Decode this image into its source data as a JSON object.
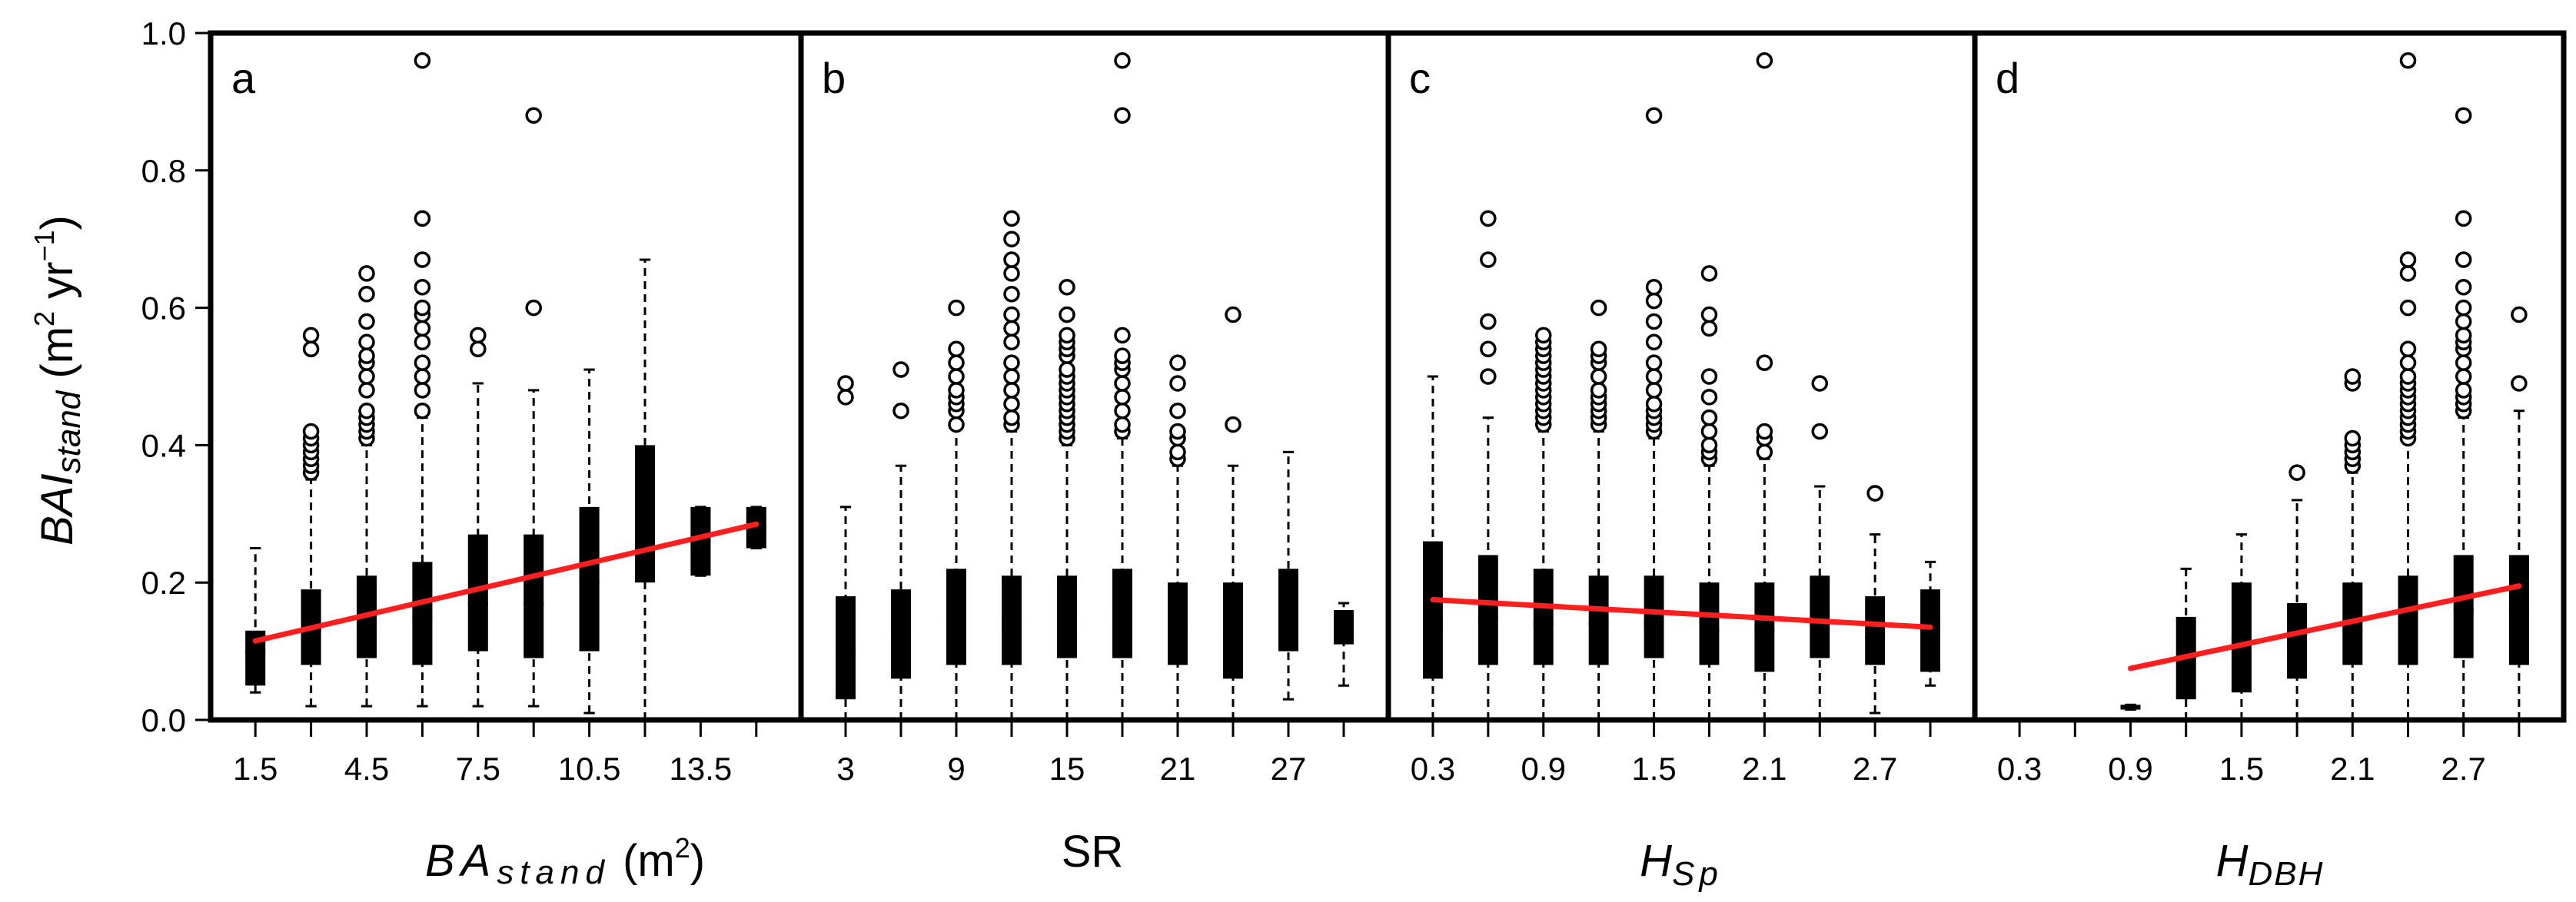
{
  "colors": {
    "box": "#000000",
    "trend": "#ff1f1f",
    "background": "#ffffff"
  },
  "y_axis": {
    "label_main": "BAI",
    "label_sub": "stand",
    "label_unit_open": " (m",
    "label_unit_sup1": "2",
    "label_unit_mid": " yr",
    "label_unit_sup2": "−1",
    "label_unit_close": ")",
    "ylim": [
      0,
      1
    ],
    "ticks": [
      {
        "value": 0.0,
        "label": "0.0"
      },
      {
        "value": 0.2,
        "label": "0.2"
      },
      {
        "value": 0.4,
        "label": "0.4"
      },
      {
        "value": 0.6,
        "label": "0.6"
      },
      {
        "value": 0.8,
        "label": "0.8"
      },
      {
        "value": 1.0,
        "label": "1.0"
      }
    ]
  },
  "chart_data": [
    {
      "type": "box",
      "panel": "a",
      "xlabel": {
        "main": "BA",
        "sub": "stand",
        "unit_open": " (m",
        "unit_sup": "2",
        "unit_close": ")"
      },
      "xlim": [
        0.75,
        15.75
      ],
      "x_tick_labels": [
        {
          "x": 1.5,
          "label": "1.5"
        },
        {
          "x": 4.5,
          "label": "4.5"
        },
        {
          "x": 7.5,
          "label": "7.5"
        },
        {
          "x": 10.5,
          "label": "10.5"
        },
        {
          "x": 13.5,
          "label": "13.5"
        }
      ],
      "boxes": [
        {
          "x": 1.5,
          "min": 0.04,
          "q1": 0.05,
          "median": 0.1,
          "q3": 0.13,
          "max": 0.25,
          "outliers": []
        },
        {
          "x": 3.0,
          "min": 0.02,
          "q1": 0.08,
          "median": 0.13,
          "q3": 0.19,
          "max": 0.35,
          "outliers": [
            0.36,
            0.37,
            0.38,
            0.39,
            0.4,
            0.41,
            0.42,
            0.54,
            0.56
          ]
        },
        {
          "x": 4.5,
          "min": 0.02,
          "q1": 0.09,
          "median": 0.14,
          "q3": 0.21,
          "max": 0.4,
          "outliers": [
            0.41,
            0.42,
            0.43,
            0.44,
            0.45,
            0.48,
            0.5,
            0.52,
            0.53,
            0.55,
            0.58,
            0.62,
            0.65
          ]
        },
        {
          "x": 6.0,
          "min": 0.02,
          "q1": 0.08,
          "median": 0.15,
          "q3": 0.23,
          "max": 0.44,
          "outliers": [
            0.45,
            0.48,
            0.5,
            0.52,
            0.55,
            0.57,
            0.59,
            0.6,
            0.63,
            0.67,
            0.73,
            0.96
          ]
        },
        {
          "x": 7.5,
          "min": 0.02,
          "q1": 0.1,
          "median": 0.17,
          "q3": 0.27,
          "max": 0.49,
          "outliers": [
            0.54,
            0.56
          ]
        },
        {
          "x": 9.0,
          "min": 0.02,
          "q1": 0.09,
          "median": 0.17,
          "q3": 0.27,
          "max": 0.48,
          "outliers": [
            0.6,
            0.88
          ]
        },
        {
          "x": 10.5,
          "min": 0.01,
          "q1": 0.1,
          "median": 0.2,
          "q3": 0.31,
          "max": 0.51,
          "outliers": []
        },
        {
          "x": 12.0,
          "min": 0.0,
          "q1": 0.2,
          "median": 0.28,
          "q3": 0.4,
          "max": 0.67,
          "outliers": []
        },
        {
          "x": 13.5,
          "min": 0.21,
          "q1": 0.21,
          "median": 0.26,
          "q3": 0.31,
          "max": 0.31,
          "outliers": []
        },
        {
          "x": 15.0,
          "min": 0.25,
          "q1": 0.25,
          "median": 0.28,
          "q3": 0.31,
          "max": 0.31,
          "outliers": []
        }
      ],
      "trend_line": {
        "x": [
          1.5,
          15.0
        ],
        "y": [
          0.115,
          0.285
        ]
      }
    },
    {
      "type": "box",
      "panel": "b",
      "xlabel": {
        "main": "SR"
      },
      "xlim": [
        1.5,
        31.5
      ],
      "x_tick_labels": [
        {
          "x": 3,
          "label": "3"
        },
        {
          "x": 9,
          "label": "9"
        },
        {
          "x": 15,
          "label": "15"
        },
        {
          "x": 21,
          "label": "21"
        },
        {
          "x": 27,
          "label": "27"
        }
      ],
      "boxes": [
        {
          "x": 3,
          "min": 0.0,
          "q1": 0.03,
          "median": 0.1,
          "q3": 0.18,
          "max": 0.31,
          "outliers": [
            0.47,
            0.49
          ]
        },
        {
          "x": 6,
          "min": 0.0,
          "q1": 0.06,
          "median": 0.12,
          "q3": 0.19,
          "max": 0.37,
          "outliers": [
            0.45,
            0.51
          ]
        },
        {
          "x": 9,
          "min": 0.0,
          "q1": 0.08,
          "median": 0.14,
          "q3": 0.22,
          "max": 0.43,
          "outliers": [
            0.43,
            0.45,
            0.46,
            0.47,
            0.48,
            0.5,
            0.52,
            0.54,
            0.6
          ]
        },
        {
          "x": 12,
          "min": 0.0,
          "q1": 0.08,
          "median": 0.14,
          "q3": 0.21,
          "max": 0.42,
          "outliers": [
            0.43,
            0.44,
            0.46,
            0.48,
            0.5,
            0.52,
            0.55,
            0.57,
            0.59,
            0.62,
            0.65,
            0.67,
            0.7,
            0.73
          ]
        },
        {
          "x": 15,
          "min": 0.0,
          "q1": 0.09,
          "median": 0.14,
          "q3": 0.21,
          "max": 0.4,
          "outliers": [
            0.41,
            0.42,
            0.43,
            0.44,
            0.45,
            0.46,
            0.47,
            0.48,
            0.49,
            0.5,
            0.51,
            0.53,
            0.54,
            0.55,
            0.56,
            0.59,
            0.63
          ]
        },
        {
          "x": 18,
          "min": 0.0,
          "q1": 0.09,
          "median": 0.15,
          "q3": 0.22,
          "max": 0.41,
          "outliers": [
            0.42,
            0.43,
            0.45,
            0.47,
            0.49,
            0.51,
            0.52,
            0.53,
            0.56,
            0.88,
            0.96
          ]
        },
        {
          "x": 21,
          "min": 0.0,
          "q1": 0.08,
          "median": 0.13,
          "q3": 0.2,
          "max": 0.37,
          "outliers": [
            0.38,
            0.39,
            0.41,
            0.42,
            0.45,
            0.49,
            0.52
          ]
        },
        {
          "x": 24,
          "min": 0.0,
          "q1": 0.06,
          "median": 0.12,
          "q3": 0.2,
          "max": 0.37,
          "outliers": [
            0.43,
            0.59
          ]
        },
        {
          "x": 27,
          "min": 0.03,
          "q1": 0.1,
          "median": 0.15,
          "q3": 0.22,
          "max": 0.39,
          "outliers": []
        },
        {
          "x": 30,
          "min": 0.05,
          "q1": 0.11,
          "median": 0.14,
          "q3": 0.16,
          "max": 0.17,
          "outliers": []
        }
      ],
      "trend_line": null
    },
    {
      "type": "box",
      "panel": "c",
      "xlabel": {
        "main": "H",
        "sub": "Sp"
      },
      "xlim": [
        0.15,
        3.15
      ],
      "x_tick_labels": [
        {
          "x": 0.3,
          "label": "0.3"
        },
        {
          "x": 0.9,
          "label": "0.9"
        },
        {
          "x": 1.5,
          "label": "1.5"
        },
        {
          "x": 2.1,
          "label": "2.1"
        },
        {
          "x": 2.7,
          "label": "2.7"
        }
      ],
      "boxes": [
        {
          "x": 0.3,
          "min": 0.0,
          "q1": 0.06,
          "median": 0.14,
          "q3": 0.26,
          "max": 0.5,
          "outliers": []
        },
        {
          "x": 0.6,
          "min": 0.0,
          "q1": 0.08,
          "median": 0.15,
          "q3": 0.24,
          "max": 0.44,
          "outliers": [
            0.5,
            0.54,
            0.58,
            0.67,
            0.73
          ]
        },
        {
          "x": 0.9,
          "min": 0.0,
          "q1": 0.08,
          "median": 0.14,
          "q3": 0.22,
          "max": 0.42,
          "outliers": [
            0.43,
            0.44,
            0.45,
            0.46,
            0.47,
            0.48,
            0.49,
            0.5,
            0.51,
            0.52,
            0.53,
            0.54,
            0.55,
            0.56
          ]
        },
        {
          "x": 1.2,
          "min": 0.0,
          "q1": 0.08,
          "median": 0.14,
          "q3": 0.21,
          "max": 0.42,
          "outliers": [
            0.43,
            0.44,
            0.45,
            0.46,
            0.47,
            0.48,
            0.5,
            0.52,
            0.53,
            0.54,
            0.6
          ]
        },
        {
          "x": 1.5,
          "min": 0.0,
          "q1": 0.09,
          "median": 0.14,
          "q3": 0.21,
          "max": 0.41,
          "outliers": [
            0.42,
            0.43,
            0.44,
            0.45,
            0.46,
            0.48,
            0.5,
            0.52,
            0.55,
            0.58,
            0.61,
            0.63,
            0.88
          ]
        },
        {
          "x": 1.8,
          "min": 0.0,
          "q1": 0.08,
          "median": 0.13,
          "q3": 0.2,
          "max": 0.37,
          "outliers": [
            0.38,
            0.39,
            0.4,
            0.42,
            0.44,
            0.47,
            0.5,
            0.57,
            0.59,
            0.65
          ]
        },
        {
          "x": 2.1,
          "min": 0.0,
          "q1": 0.07,
          "median": 0.13,
          "q3": 0.2,
          "max": 0.38,
          "outliers": [
            0.39,
            0.41,
            0.42,
            0.52,
            0.96
          ]
        },
        {
          "x": 2.4,
          "min": 0.0,
          "q1": 0.09,
          "median": 0.14,
          "q3": 0.21,
          "max": 0.34,
          "outliers": [
            0.42,
            0.49
          ]
        },
        {
          "x": 2.7,
          "min": 0.01,
          "q1": 0.08,
          "median": 0.12,
          "q3": 0.18,
          "max": 0.27,
          "outliers": [
            0.33,
            0.33
          ]
        },
        {
          "x": 3.0,
          "min": 0.05,
          "q1": 0.07,
          "median": 0.14,
          "q3": 0.19,
          "max": 0.23,
          "outliers": []
        }
      ],
      "trend_line": {
        "x": [
          0.3,
          3.0
        ],
        "y": [
          0.175,
          0.135
        ]
      }
    },
    {
      "type": "box",
      "panel": "d",
      "xlabel": {
        "main": "H",
        "sub": "DBH"
      },
      "xlim": [
        0.15,
        3.15
      ],
      "x_tick_labels": [
        {
          "x": 0.3,
          "label": "0.3"
        },
        {
          "x": 0.9,
          "label": "0.9"
        },
        {
          "x": 1.5,
          "label": "1.5"
        },
        {
          "x": 2.1,
          "label": "2.1"
        },
        {
          "x": 2.7,
          "label": "2.7"
        }
      ],
      "boxes": [
        {
          "x": 0.9,
          "min": 0.015,
          "q1": 0.015,
          "median": 0.018,
          "q3": 0.022,
          "max": 0.022,
          "outliers": []
        },
        {
          "x": 1.2,
          "min": 0.0,
          "q1": 0.03,
          "median": 0.09,
          "q3": 0.15,
          "max": 0.22,
          "outliers": []
        },
        {
          "x": 1.5,
          "min": 0.0,
          "q1": 0.04,
          "median": 0.12,
          "q3": 0.2,
          "max": 0.27,
          "outliers": []
        },
        {
          "x": 1.8,
          "min": 0.0,
          "q1": 0.06,
          "median": 0.11,
          "q3": 0.17,
          "max": 0.32,
          "outliers": [
            0.36
          ]
        },
        {
          "x": 2.1,
          "min": 0.0,
          "q1": 0.08,
          "median": 0.13,
          "q3": 0.2,
          "max": 0.36,
          "outliers": [
            0.37,
            0.38,
            0.39,
            0.4,
            0.41,
            0.49,
            0.5
          ]
        },
        {
          "x": 2.4,
          "min": 0.0,
          "q1": 0.08,
          "median": 0.14,
          "q3": 0.21,
          "max": 0.41,
          "outliers": [
            0.41,
            0.42,
            0.43,
            0.44,
            0.45,
            0.46,
            0.47,
            0.48,
            0.49,
            0.5,
            0.52,
            0.54,
            0.6,
            0.65,
            0.67,
            0.96
          ]
        },
        {
          "x": 2.7,
          "min": 0.0,
          "q1": 0.09,
          "median": 0.16,
          "q3": 0.24,
          "max": 0.44,
          "outliers": [
            0.45,
            0.46,
            0.47,
            0.48,
            0.5,
            0.52,
            0.54,
            0.55,
            0.56,
            0.58,
            0.6,
            0.63,
            0.67,
            0.73,
            0.88
          ]
        },
        {
          "x": 3.0,
          "min": 0.0,
          "q1": 0.08,
          "median": 0.16,
          "q3": 0.24,
          "max": 0.45,
          "outliers": [
            0.49,
            0.59
          ]
        }
      ],
      "trend_line": {
        "x": [
          0.9,
          3.0
        ],
        "y": [
          0.075,
          0.195
        ]
      }
    }
  ]
}
